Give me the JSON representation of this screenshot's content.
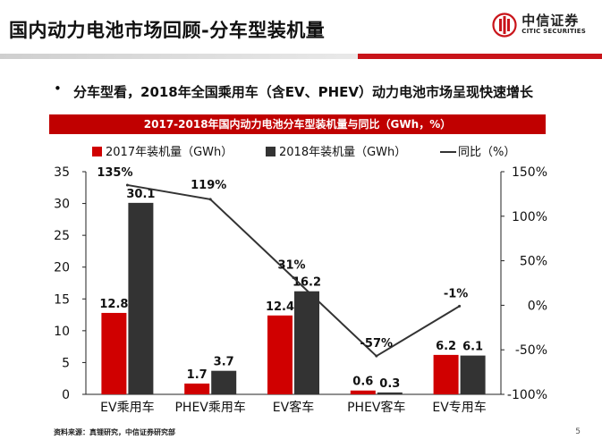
{
  "header": {
    "title": "国内动力电池市场回顾-分车型装机量",
    "logo_cn": "中信证券",
    "logo_en": "CITIC SECURITIES"
  },
  "bullet": {
    "symbol": "•",
    "text": "分车型看，2018年全国乘用车（含EV、PHEV）动力电池市场呈现快速增长"
  },
  "footer": {
    "source": "资料来源：真锂研究，中信证券研究部",
    "page": "5"
  },
  "colors": {
    "red": "#d00000",
    "dark": "#333333",
    "line": "#333333",
    "title_bar": "#c00000"
  },
  "chart_data": {
    "type": "bar",
    "title": "2017-2018年国内动力电池分车型装机量与同比（GWh，%）",
    "categories": [
      "EV乘用车",
      "PHEV乘用车",
      "EV客车",
      "PHEV客车",
      "EV专用车"
    ],
    "series": [
      {
        "name": "2017年装机量（GWh）",
        "type": "bar",
        "axis": "left",
        "values": [
          12.8,
          1.7,
          12.4,
          0.6,
          6.2
        ],
        "labels": [
          "12.8",
          "1.7",
          "12.4",
          "0.6",
          "6.2"
        ]
      },
      {
        "name": "2018年装机量（GWh）",
        "type": "bar",
        "axis": "left",
        "values": [
          30.1,
          3.7,
          16.2,
          0.3,
          6.1
        ],
        "labels": [
          "30.1",
          "3.7",
          "16.2",
          "0.3",
          "6.1"
        ]
      },
      {
        "name": "同比（%）",
        "type": "line",
        "axis": "right",
        "values": [
          135,
          119,
          31,
          -57,
          -1
        ],
        "labels": [
          "135%",
          "119%",
          "31%",
          "-57%",
          "-1%"
        ]
      }
    ],
    "ylim_left": [
      0,
      35
    ],
    "yticks_left": [
      0,
      5,
      10,
      15,
      20,
      25,
      30,
      35
    ],
    "ytick_labels_left": [
      "0",
      "5",
      "10",
      "15",
      "20",
      "25",
      "30",
      "35"
    ],
    "ylim_right": [
      -100,
      150
    ],
    "yticks_right": [
      -100,
      -50,
      0,
      50,
      100,
      150
    ],
    "ytick_labels_right": [
      "-100%",
      "-50%",
      "0%",
      "50%",
      "100%",
      "150%"
    ],
    "legend_position": "top"
  }
}
